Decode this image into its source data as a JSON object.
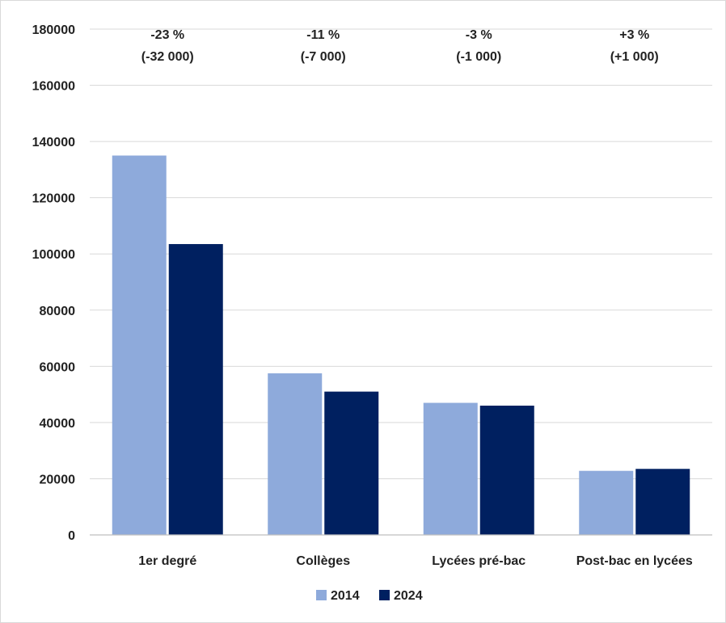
{
  "chart_data": {
    "type": "bar",
    "title": "",
    "xlabel": "",
    "ylabel": "",
    "ylim": [
      0,
      180000
    ],
    "yticks": [
      0,
      20000,
      40000,
      60000,
      80000,
      100000,
      120000,
      140000,
      160000,
      180000
    ],
    "ytick_labels": [
      "0",
      "20000",
      "40000",
      "60000",
      "80000",
      "100000",
      "120000",
      "140000",
      "160000",
      "180000"
    ],
    "categories": [
      "1er degré",
      "Collèges",
      "Lycées pré-bac",
      "Post-bac en lycées"
    ],
    "series": [
      {
        "name": "2014",
        "color": "#8eaadb",
        "values": [
          135000,
          57500,
          47000,
          22800
        ]
      },
      {
        "name": "2024",
        "color": "#002060",
        "values": [
          103500,
          51000,
          46000,
          23500
        ]
      }
    ],
    "annotations": [
      {
        "pct": "-23 %",
        "abs": "(-32 000)"
      },
      {
        "pct": "-11 %",
        "abs": "(-7 000)"
      },
      {
        "pct": "-3 %",
        "abs": "(-1 000)"
      },
      {
        "pct": "+3 %",
        "abs": "(+1 000)"
      }
    ],
    "grid": true,
    "legend": {
      "position": "bottom-center"
    }
  }
}
